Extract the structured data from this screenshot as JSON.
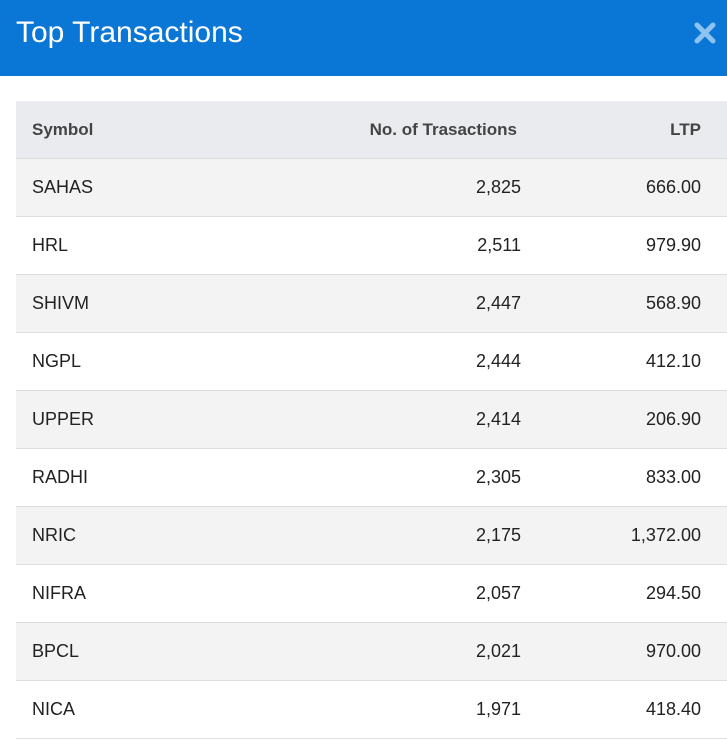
{
  "header": {
    "title": "Top Transactions"
  },
  "table": {
    "columns": [
      "Symbol",
      "No. of Trasactions",
      "LTP"
    ],
    "rows": [
      [
        "SAHAS",
        "2,825",
        "666.00"
      ],
      [
        "HRL",
        "2,511",
        "979.90"
      ],
      [
        "SHIVM",
        "2,447",
        "568.90"
      ],
      [
        "NGPL",
        "2,444",
        "412.10"
      ],
      [
        "UPPER",
        "2,414",
        "206.90"
      ],
      [
        "RADHI",
        "2,305",
        "833.00"
      ],
      [
        "NRIC",
        "2,175",
        "1,372.00"
      ],
      [
        "NIFRA",
        "2,057",
        "294.50"
      ],
      [
        "BPCL",
        "2,021",
        "970.00"
      ],
      [
        "NICA",
        "1,971",
        "418.40"
      ]
    ]
  }
}
